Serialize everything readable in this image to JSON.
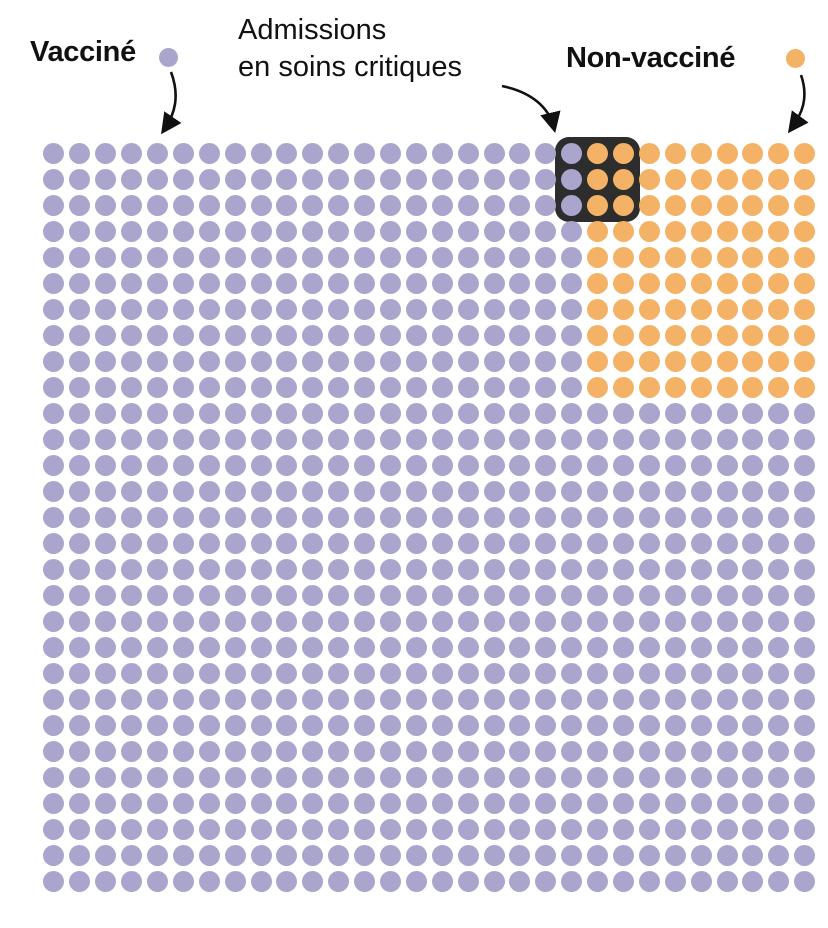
{
  "header": {
    "vaccinated_label": "Vacciné",
    "nonvaccinated_label": "Non-vacciné",
    "annotation_line1": "Admissions",
    "annotation_line2": "en soins critiques"
  },
  "colors": {
    "vaccinated": "#a9a5cd",
    "nonvaccinated": "#f4b266",
    "highlight_box": "#2d2d2d",
    "text": "#111111"
  },
  "chart_data": {
    "type": "waffle",
    "title": "",
    "legend": [
      {
        "label": "Vacciné",
        "color": "#a9a5cd"
      },
      {
        "label": "Non-vacciné",
        "color": "#f4b266"
      }
    ],
    "annotation": "Admissions en soins critiques",
    "grid": {
      "rows": 29,
      "cols": 30,
      "total_units": 870
    },
    "series": [
      {
        "name": "Vacciné",
        "value": 780,
        "color": "#a9a5cd"
      },
      {
        "name": "Non-vacciné",
        "value": 90,
        "color": "#f4b266"
      }
    ],
    "nonvaccinated_block": {
      "col_start": 22,
      "col_end": 30,
      "row_start": 1,
      "row_end": 10
    },
    "highlight_box": {
      "label": "Admissions en soins critiques",
      "col_start": 21,
      "col_end": 23,
      "row_start": 1,
      "row_end": 3,
      "total_units": 9,
      "vaccinated_units": 3,
      "nonvaccinated_units": 6
    },
    "layout_hints": {
      "legend_position": "top",
      "grid_lines": false
    }
  }
}
